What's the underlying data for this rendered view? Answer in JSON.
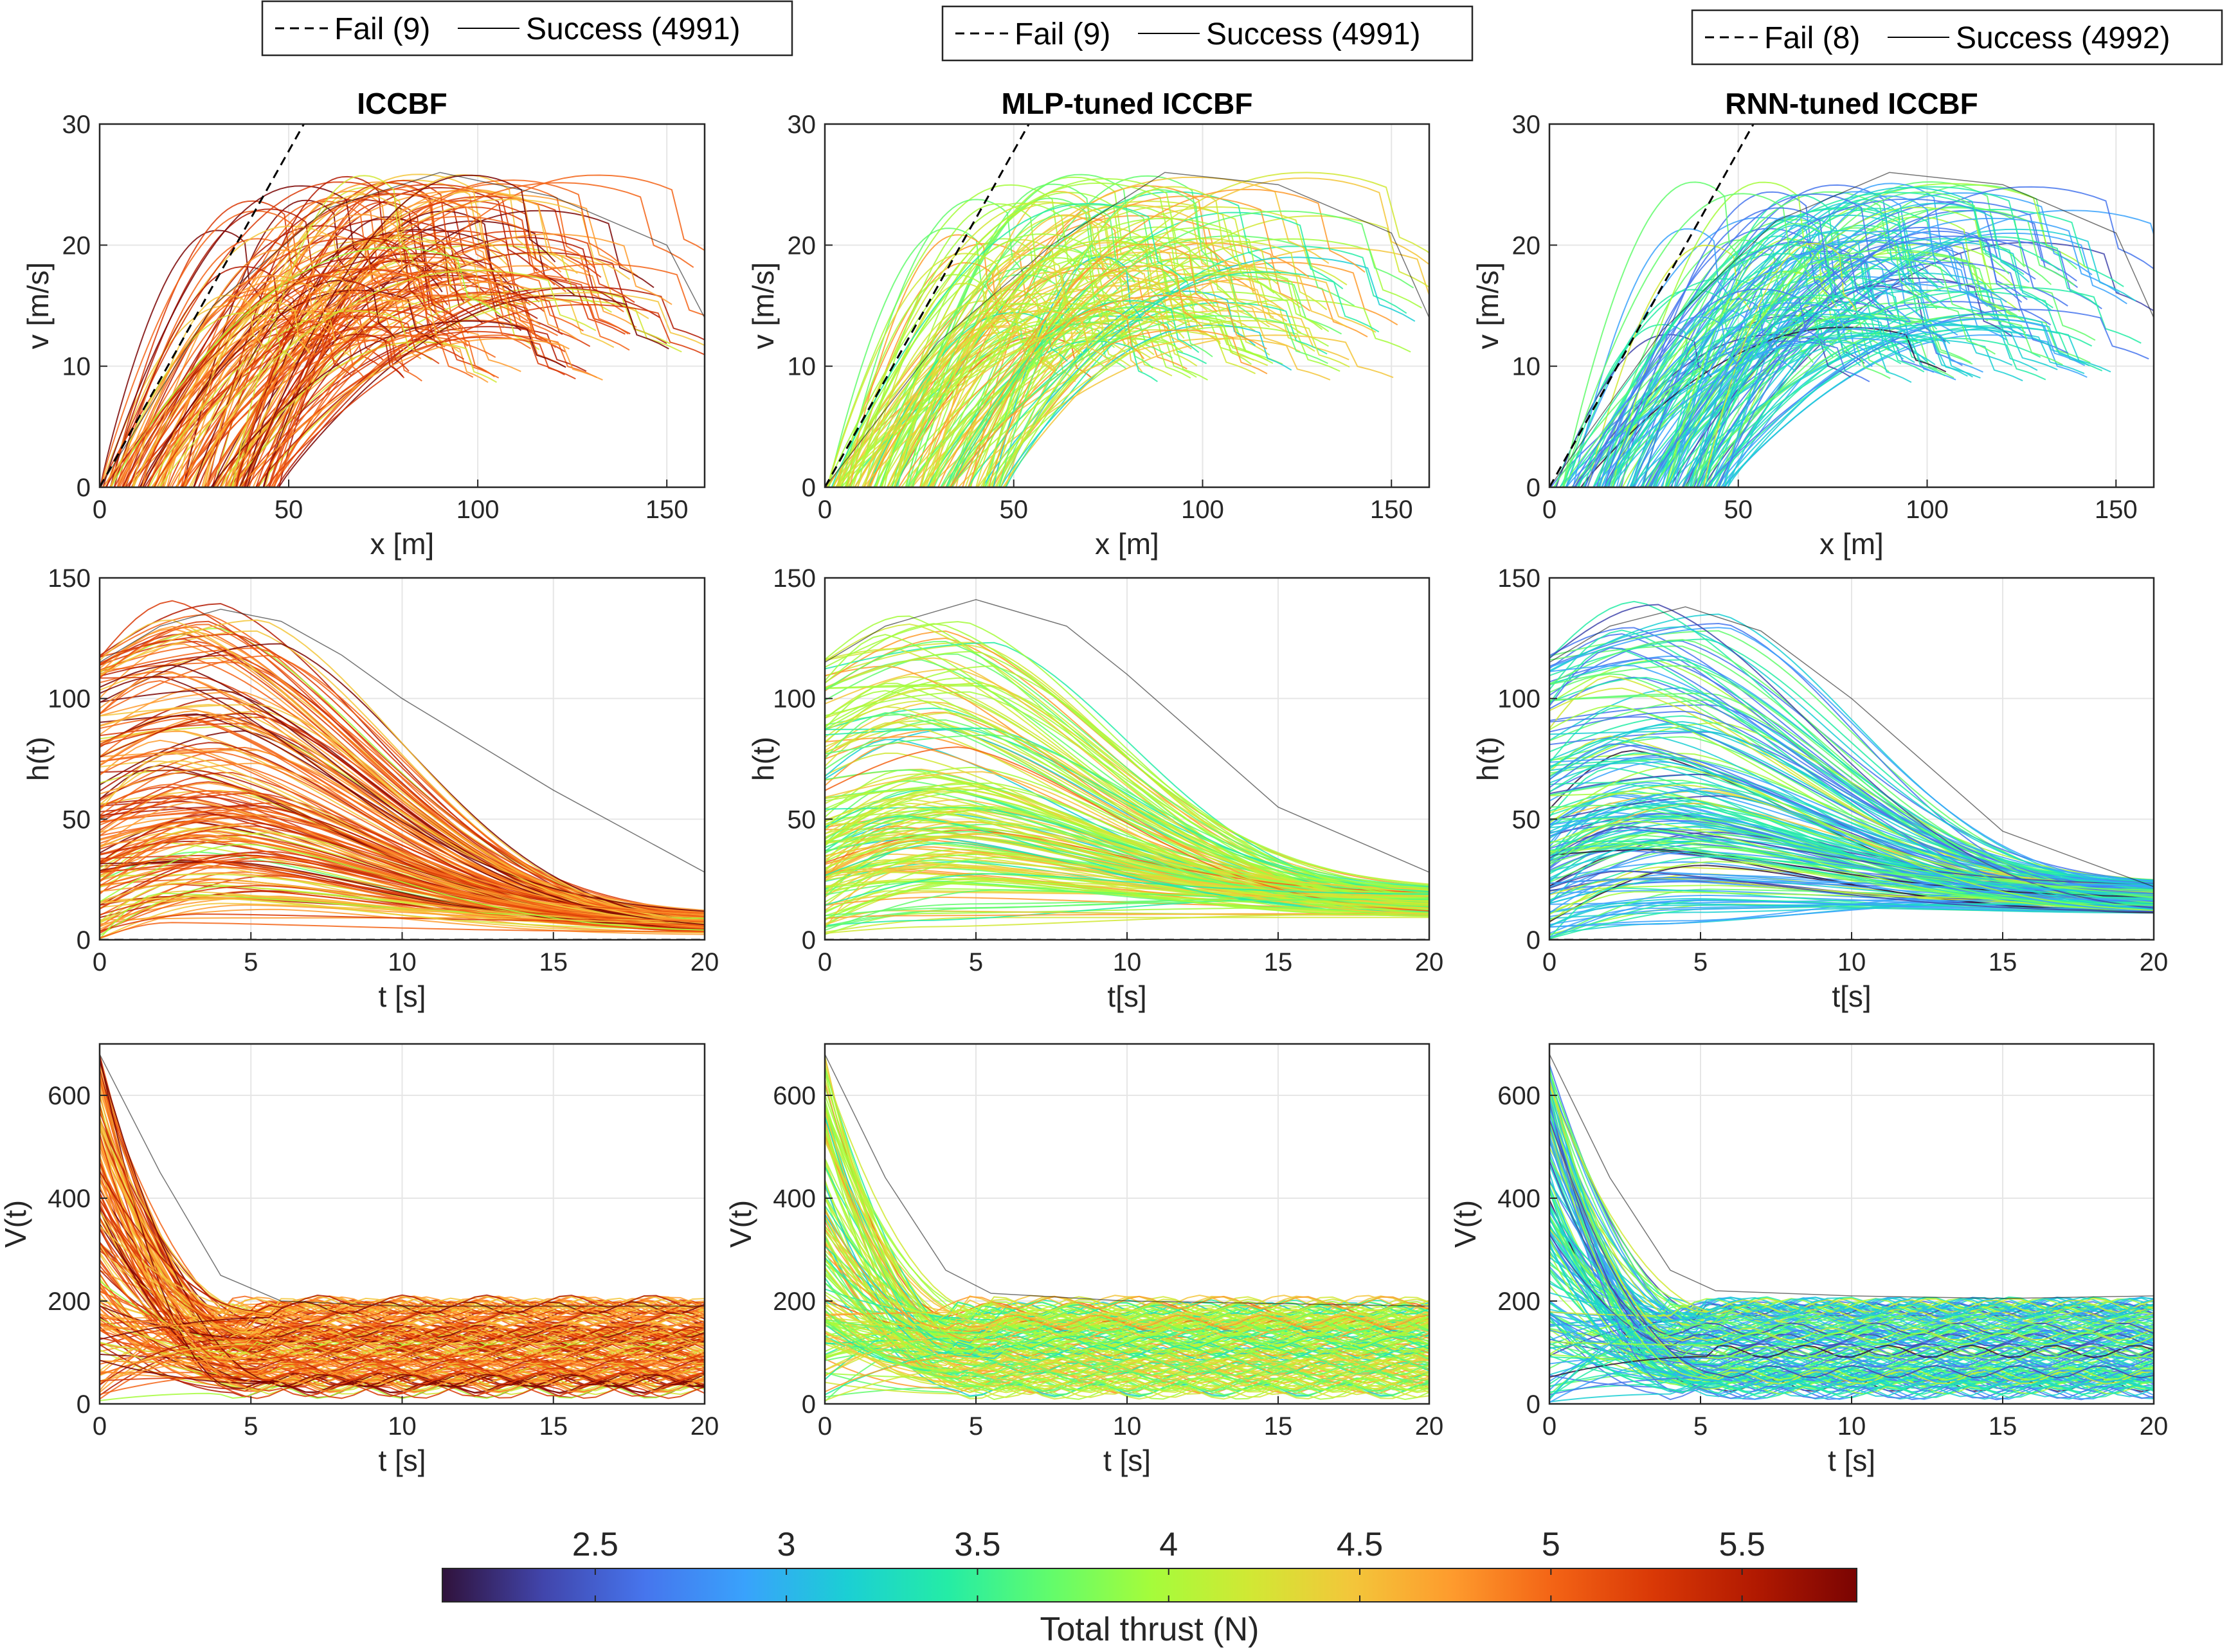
{
  "chart_data": [
    {
      "type": "line",
      "panel": "top-left",
      "title": "ICCBF",
      "xlabel": "x [m]",
      "ylabel": "v [m/s]",
      "xlim": [
        0,
        160
      ],
      "ylim": [
        0,
        30
      ],
      "xticks": [
        "0",
        "50",
        "100",
        "150"
      ],
      "yticks": [
        "0",
        "10",
        "20",
        "30"
      ],
      "grid": true,
      "legend": {
        "placement": "top",
        "entries": [
          "Fail (9)",
          "Success (4991)"
        ]
      },
      "series": [
        {
          "name": "Fail",
          "style": "dashed",
          "x": [
            0,
            54
          ],
          "y": [
            0,
            30
          ]
        },
        {
          "name": "Success",
          "style": "solid",
          "x": [
            0,
            30,
            60,
            90,
            120,
            150,
            160
          ],
          "y": [
            0,
            15,
            23,
            26,
            24,
            20,
            14
          ]
        }
      ]
    },
    {
      "type": "line",
      "panel": "top-middle",
      "title": "MLP-tuned ICCBF",
      "xlabel": "x [m]",
      "ylabel": "v [m/s]",
      "xlim": [
        0,
        160
      ],
      "ylim": [
        0,
        30
      ],
      "xticks": [
        "0",
        "50",
        "100",
        "150"
      ],
      "yticks": [
        "0",
        "10",
        "20",
        "30"
      ],
      "grid": true,
      "legend": {
        "placement": "top",
        "entries": [
          "Fail (9)",
          "Success (4991)"
        ]
      },
      "series": [
        {
          "name": "Fail",
          "style": "dashed",
          "x": [
            0,
            54
          ],
          "y": [
            0,
            30
          ]
        },
        {
          "name": "Success",
          "style": "solid",
          "x": [
            0,
            30,
            60,
            90,
            120,
            150,
            160
          ],
          "y": [
            0,
            12,
            20,
            26,
            25,
            21,
            14
          ]
        }
      ]
    },
    {
      "type": "line",
      "panel": "top-right",
      "title": "RNN-tuned ICCBF",
      "xlabel": "x [m]",
      "ylabel": "v [m/s]",
      "xlim": [
        0,
        160
      ],
      "ylim": [
        0,
        30
      ],
      "xticks": [
        "0",
        "50",
        "100",
        "150"
      ],
      "yticks": [
        "0",
        "10",
        "20",
        "30"
      ],
      "grid": true,
      "legend": {
        "placement": "top",
        "entries": [
          "Fail (8)",
          "Success (4992)"
        ]
      },
      "series": [
        {
          "name": "Fail",
          "style": "dashed",
          "x": [
            0,
            54
          ],
          "y": [
            0,
            30
          ]
        },
        {
          "name": "Success",
          "style": "solid",
          "x": [
            0,
            30,
            60,
            90,
            120,
            150,
            160
          ],
          "y": [
            0,
            13,
            22,
            26,
            25,
            21,
            14
          ]
        }
      ]
    },
    {
      "type": "line",
      "panel": "middle-left",
      "xlabel": "t [s]",
      "ylabel": "h(t)",
      "xlim": [
        0,
        20
      ],
      "ylim": [
        0,
        150
      ],
      "xticks": [
        "0",
        "5",
        "10",
        "15",
        "20"
      ],
      "yticks": [
        "0",
        "50",
        "100",
        "150"
      ],
      "grid": true,
      "series": [
        {
          "name": "Success (upper envelope)",
          "style": "solid",
          "x": [
            0,
            2,
            4,
            6,
            8,
            10,
            15,
            20
          ],
          "y": [
            115,
            130,
            137,
            132,
            118,
            100,
            62,
            28
          ]
        },
        {
          "name": "Fail",
          "style": "dashed",
          "x": [
            0,
            20
          ],
          "y": [
            0,
            0
          ]
        }
      ]
    },
    {
      "type": "line",
      "panel": "middle-middle",
      "xlabel": "t[s]",
      "ylabel": "h(t)",
      "xlim": [
        0,
        20
      ],
      "ylim": [
        0,
        150
      ],
      "xticks": [
        "0",
        "5",
        "10",
        "15",
        "20"
      ],
      "yticks": [
        "0",
        "50",
        "100",
        "150"
      ],
      "grid": true,
      "series": [
        {
          "name": "Success (upper envelope)",
          "style": "solid",
          "x": [
            0,
            2,
            5,
            8,
            10,
            15,
            20
          ],
          "y": [
            115,
            130,
            141,
            130,
            110,
            55,
            28
          ]
        },
        {
          "name": "Fail",
          "style": "dashed",
          "x": [
            0,
            20
          ],
          "y": [
            0,
            0
          ]
        }
      ]
    },
    {
      "type": "line",
      "panel": "middle-right",
      "xlabel": "t[s]",
      "ylabel": "h(t)",
      "xlim": [
        0,
        20
      ],
      "ylim": [
        0,
        150
      ],
      "xticks": [
        "0",
        "5",
        "10",
        "15",
        "20"
      ],
      "yticks": [
        "0",
        "50",
        "100",
        "150"
      ],
      "grid": true,
      "series": [
        {
          "name": "Success (upper envelope)",
          "style": "solid",
          "x": [
            0,
            2,
            4.5,
            7,
            10,
            15,
            20
          ],
          "y": [
            115,
            130,
            138,
            128,
            100,
            45,
            22
          ]
        },
        {
          "name": "Fail",
          "style": "dashed",
          "x": [
            0,
            20
          ],
          "y": [
            0,
            0
          ]
        }
      ]
    },
    {
      "type": "line",
      "panel": "bottom-left",
      "xlabel": "t [s]",
      "ylabel": "V(t)",
      "xlim": [
        0,
        20
      ],
      "ylim": [
        0,
        700
      ],
      "xticks": [
        "0",
        "5",
        "10",
        "15",
        "20"
      ],
      "yticks": [
        "0",
        "200",
        "400",
        "600"
      ],
      "grid": true,
      "series": [
        {
          "name": "Success (upper envelope)",
          "style": "solid",
          "x": [
            0,
            2,
            4,
            6,
            10,
            15,
            20
          ],
          "y": [
            680,
            450,
            250,
            200,
            190,
            190,
            190
          ]
        }
      ]
    },
    {
      "type": "line",
      "panel": "bottom-middle",
      "xlabel": "t [s]",
      "ylabel": "V(t)",
      "xlim": [
        0,
        20
      ],
      "ylim": [
        0,
        700
      ],
      "xticks": [
        "0",
        "5",
        "10",
        "15",
        "20"
      ],
      "yticks": [
        "0",
        "200",
        "400",
        "600"
      ],
      "grid": true,
      "series": [
        {
          "name": "Success (upper envelope)",
          "style": "solid",
          "x": [
            0,
            2,
            4,
            5.5,
            10,
            15,
            20
          ],
          "y": [
            680,
            440,
            260,
            215,
            200,
            195,
            190
          ]
        }
      ]
    },
    {
      "type": "line",
      "panel": "bottom-right",
      "xlabel": "t [s]",
      "ylabel": "V(t)",
      "xlim": [
        0,
        20
      ],
      "ylim": [
        0,
        700
      ],
      "xticks": [
        "0",
        "5",
        "10",
        "15",
        "20"
      ],
      "yticks": [
        "0",
        "200",
        "400",
        "600"
      ],
      "grid": true,
      "series": [
        {
          "name": "Success (upper envelope)",
          "style": "solid",
          "x": [
            0,
            2,
            4,
            5.5,
            10,
            15,
            20
          ],
          "y": [
            680,
            440,
            260,
            220,
            210,
            205,
            210
          ]
        }
      ]
    }
  ],
  "colorbar": {
    "label": "Total thrust (N)",
    "range": [
      2.1,
      5.8
    ],
    "ticks": [
      "2.5",
      "3",
      "3.5",
      "4",
      "4.5",
      "5",
      "5.5"
    ],
    "colors": [
      "#30123b",
      "#4145ab",
      "#4675ed",
      "#39a2fc",
      "#1bcfd4",
      "#24eca6",
      "#61fc6c",
      "#a4fc3b",
      "#d1e834",
      "#f3c63a",
      "#fe9b2d",
      "#f36315",
      "#d93806",
      "#b11901",
      "#7a0402"
    ]
  }
}
